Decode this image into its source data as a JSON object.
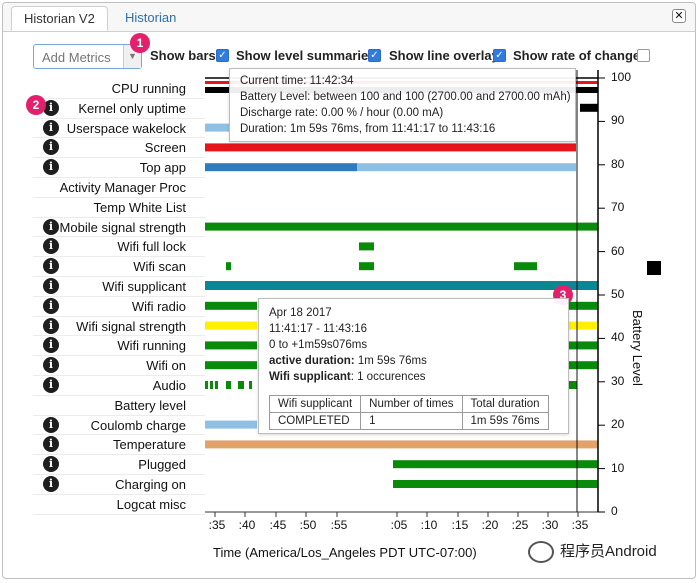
{
  "tabs": [
    {
      "label": "Historian V2",
      "active": true
    },
    {
      "label": "Historian",
      "active": false
    }
  ],
  "close_label": "✕",
  "controls": {
    "add_metrics_placeholder": "Add Metrics",
    "options": [
      {
        "label": "Show bars",
        "checked": true
      },
      {
        "label": "Show level summaries",
        "checked": true
      },
      {
        "label": "Show line overlay",
        "checked": true
      },
      {
        "label": "Show rate of change",
        "checked": false
      }
    ]
  },
  "callouts": [
    "1",
    "2",
    "3"
  ],
  "metrics": [
    {
      "label": "CPU running",
      "info": false
    },
    {
      "label": "Kernel only uptime",
      "info": true
    },
    {
      "label": "Userspace wakelock",
      "info": true
    },
    {
      "label": "Screen",
      "info": true
    },
    {
      "label": "Top app",
      "info": true
    },
    {
      "label": "Activity Manager Proc",
      "info": false
    },
    {
      "label": "Temp White List",
      "info": false
    },
    {
      "label": "Mobile signal strength",
      "info": true
    },
    {
      "label": "Wifi full lock",
      "info": true
    },
    {
      "label": "Wifi scan",
      "info": true
    },
    {
      "label": "Wifi supplicant",
      "info": true
    },
    {
      "label": "Wifi radio",
      "info": true
    },
    {
      "label": "Wifi signal strength",
      "info": true
    },
    {
      "label": "Wifi running",
      "info": true
    },
    {
      "label": "Wifi on",
      "info": true
    },
    {
      "label": "Audio",
      "info": true
    },
    {
      "label": "Battery level",
      "info": false
    },
    {
      "label": "Coulomb charge",
      "info": true
    },
    {
      "label": "Temperature",
      "info": true
    },
    {
      "label": "Plugged",
      "info": true
    },
    {
      "label": "Charging on",
      "info": true
    },
    {
      "label": "Logcat misc",
      "info": false
    }
  ],
  "axes": {
    "x_label": "Time (America/Los_Angeles PDT UTC-07:00)",
    "x_ticks": [
      ":35",
      ":40",
      ":45",
      ":50",
      ":55",
      ":05",
      ":10",
      ":15",
      ":20",
      ":25",
      ":30",
      ":35"
    ],
    "y_label": "Battery Level",
    "y_ticks": [
      "100",
      "90",
      "80",
      "70",
      "60",
      "50",
      "40",
      "30",
      "20",
      "10",
      "0"
    ]
  },
  "tooltip_current": {
    "lines": [
      "Current time: 11:42:34",
      "Battery Level: between 100 and 100 (2700.00 and 2700.00 mAh)",
      "Discharge rate: 0.00 % / hour (0.00 mA)",
      "Duration: 1m 59s 76ms, from 11:41:17 to 11:43:16"
    ]
  },
  "tooltip_supplicant": {
    "date": "Apr 18 2017",
    "time_range": "11:41:17 - 11:43:16",
    "offset": "0 to +1m59s076ms",
    "active_duration_label": "active duration:",
    "active_duration_value": "1m 59s 76ms",
    "count_label": "Wifi supplicant",
    "count_value": ": 1 occurences",
    "table": {
      "headers": [
        "Wifi supplicant",
        "Number of times",
        "Total duration"
      ],
      "rows": [
        [
          "COMPLETED",
          "1",
          "1m 59s 76ms"
        ]
      ]
    }
  },
  "colors": {
    "green": "#0a8a0a",
    "red": "#e8141b",
    "blue": "#2e7bbf",
    "light_blue": "#8ec0e6",
    "teal": "#0b8793",
    "yellow": "#fff000",
    "tan": "#e2a36b",
    "black": "#000000",
    "callout": "#e3206c"
  },
  "watermark": "程序员Android"
}
